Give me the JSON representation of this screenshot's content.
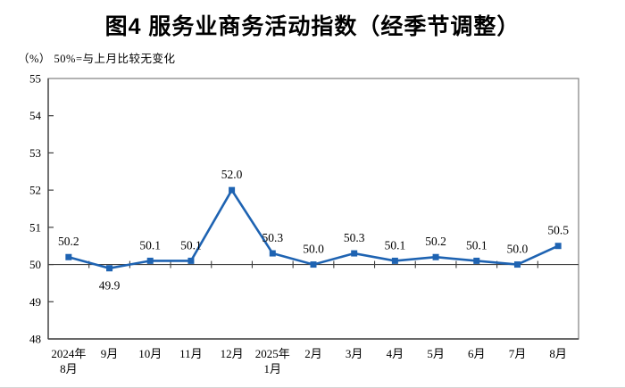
{
  "title": "图4 服务业商务活动指数（经季节调整）",
  "subtitle": "（%） 50%=与上月比较无变化",
  "chart_data": {
    "type": "line",
    "title": "图4 服务业商务活动指数（经季节调整）",
    "unit_note": "（%） 50%=与上月比较无变化",
    "categories": [
      "2024年\n8月",
      "9月",
      "10月",
      "11月",
      "12月",
      "2025年\n1月",
      "2月",
      "3月",
      "4月",
      "5月",
      "6月",
      "7月",
      "8月"
    ],
    "values": [
      50.2,
      49.9,
      50.1,
      50.1,
      52.0,
      50.3,
      50.0,
      50.3,
      50.1,
      50.2,
      50.1,
      50.0,
      50.5
    ],
    "point_labels": [
      "50.2",
      "49.9",
      "50.1",
      "50.1",
      "52.0",
      "50.3",
      "50.0",
      "50.3",
      "50.1",
      "50.2",
      "50.1",
      "50.0",
      "50.5"
    ],
    "label_placement": [
      "above",
      "below",
      "above",
      "above",
      "above",
      "above",
      "above",
      "above",
      "above",
      "above",
      "above",
      "above",
      "above"
    ],
    "ylim": [
      48,
      55
    ],
    "yticks": [
      48,
      49,
      50,
      51,
      52,
      53,
      54,
      55
    ],
    "ytick_step": 1,
    "reference_line": 50,
    "grid": false,
    "legend": "none",
    "marker": "square",
    "colors": {
      "line": "#1E63B2",
      "marker": "#1E63B2",
      "axis": "#404040",
      "frame": "#7F7F7F",
      "text": "#000000",
      "background": "#FFFFFF"
    }
  }
}
